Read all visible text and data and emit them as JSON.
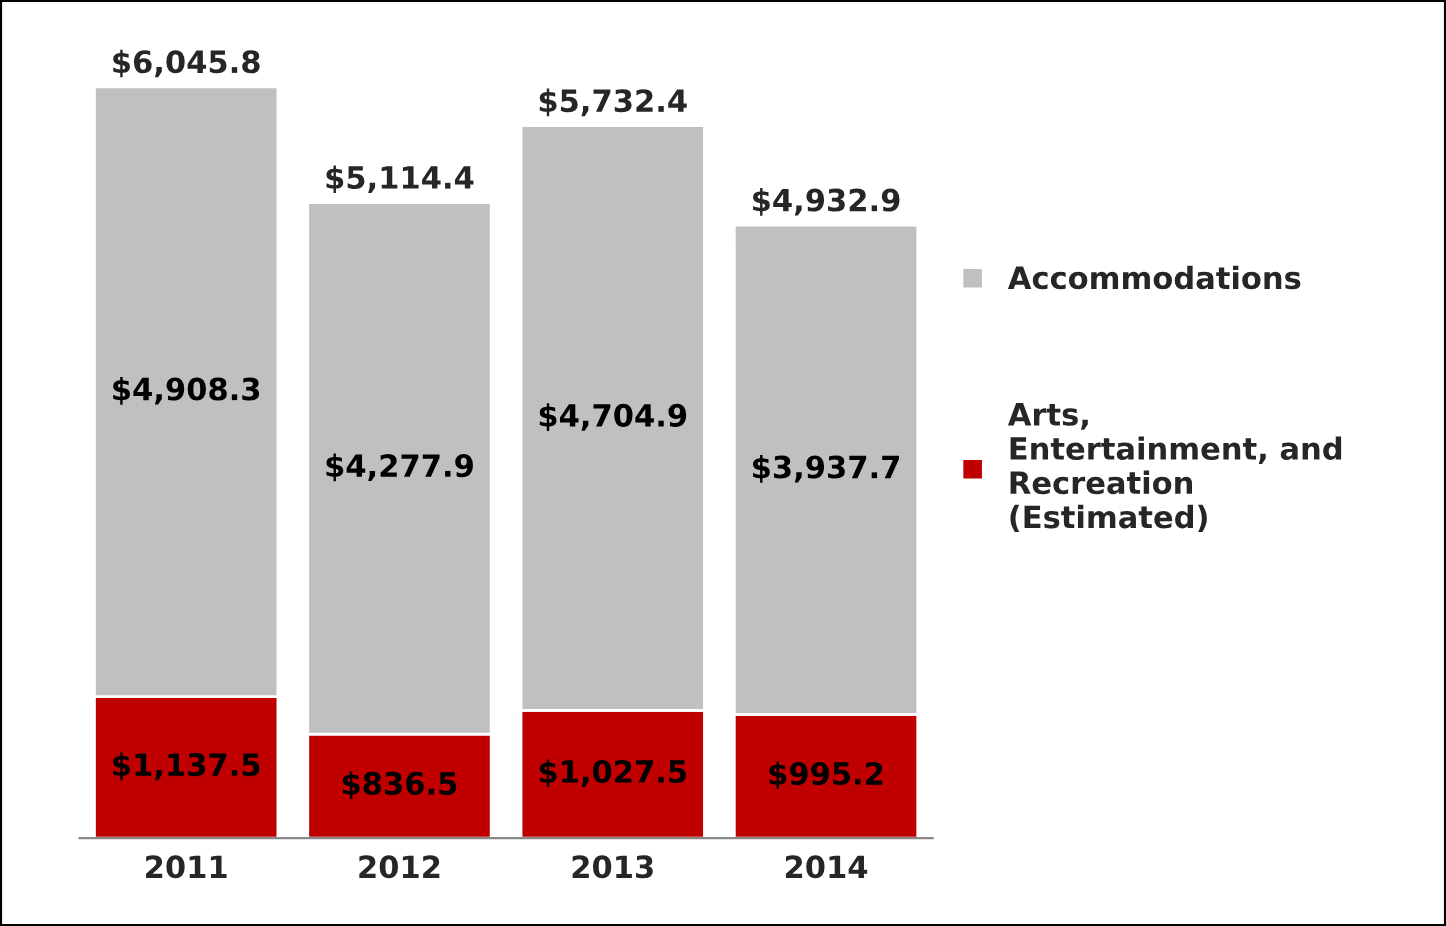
{
  "chart_data": {
    "type": "bar",
    "stacked": true,
    "categories": [
      "2011",
      "2012",
      "2013",
      "2014"
    ],
    "series": [
      {
        "name": "Arts,\nEntertainment, and\nRecreation\n(Estimated)",
        "color": "#c00000",
        "values": [
          1137.5,
          836.5,
          1027.5,
          995.2
        ],
        "value_labels": [
          "$1,137.5",
          "$836.5",
          "$1,027.5",
          "$995.2"
        ]
      },
      {
        "name": "Accommodations",
        "color": "#c0c0c0",
        "values": [
          4908.3,
          4277.9,
          4704.9,
          3937.7
        ],
        "value_labels": [
          "$4,908.3",
          "$4,277.9",
          "$4,704.9",
          "$3,937.7"
        ]
      }
    ],
    "totals": [
      "$6,045.8",
      "$5,114.4",
      "$5,732.4",
      "$4,932.9"
    ],
    "legend": "right",
    "grid": false
  }
}
